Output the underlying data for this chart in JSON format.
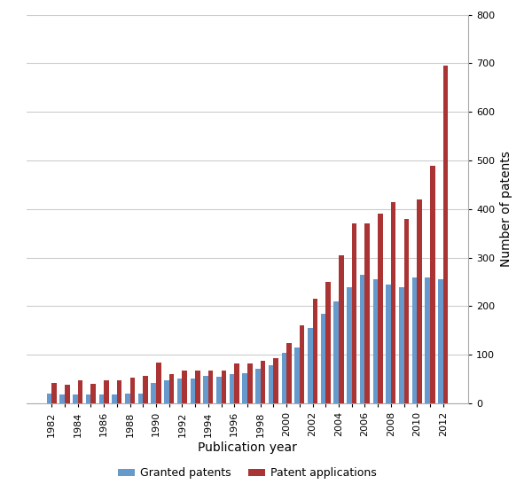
{
  "years": [
    1982,
    1983,
    1984,
    1985,
    1986,
    1987,
    1988,
    1989,
    1990,
    1991,
    1992,
    1993,
    1994,
    1995,
    1996,
    1997,
    1998,
    1999,
    2000,
    2001,
    2002,
    2003,
    2004,
    2005,
    2006,
    2007,
    2008,
    2009,
    2010,
    2011,
    2012
  ],
  "granted_patents": [
    20,
    18,
    18,
    18,
    18,
    18,
    20,
    20,
    42,
    48,
    52,
    52,
    57,
    55,
    60,
    63,
    72,
    78,
    105,
    115,
    155,
    185,
    210,
    240,
    265,
    255,
    245,
    240,
    260,
    260,
    255
  ],
  "patent_applications": [
    42,
    38,
    47,
    40,
    47,
    47,
    53,
    57,
    85,
    60,
    68,
    68,
    68,
    68,
    83,
    83,
    88,
    93,
    125,
    160,
    215,
    250,
    305,
    370,
    370,
    390,
    415,
    380,
    420,
    490,
    695
  ],
  "granted_color": "#6699CC",
  "applications_color": "#AA3333",
  "ylabel": "Number of patents",
  "xlabel": "Publication year",
  "legend_granted": "Granted patents",
  "legend_applications": "Patent applications",
  "ylim": [
    0,
    800
  ],
  "yticks": [
    0,
    100,
    200,
    300,
    400,
    500,
    600,
    700,
    800
  ],
  "bar_width": 0.38,
  "background_color": "#FFFFFF",
  "grid_color": "#CCCCCC",
  "ylabel_fontsize": 10,
  "xlabel_fontsize": 10,
  "tick_fontsize": 8,
  "legend_fontsize": 9
}
